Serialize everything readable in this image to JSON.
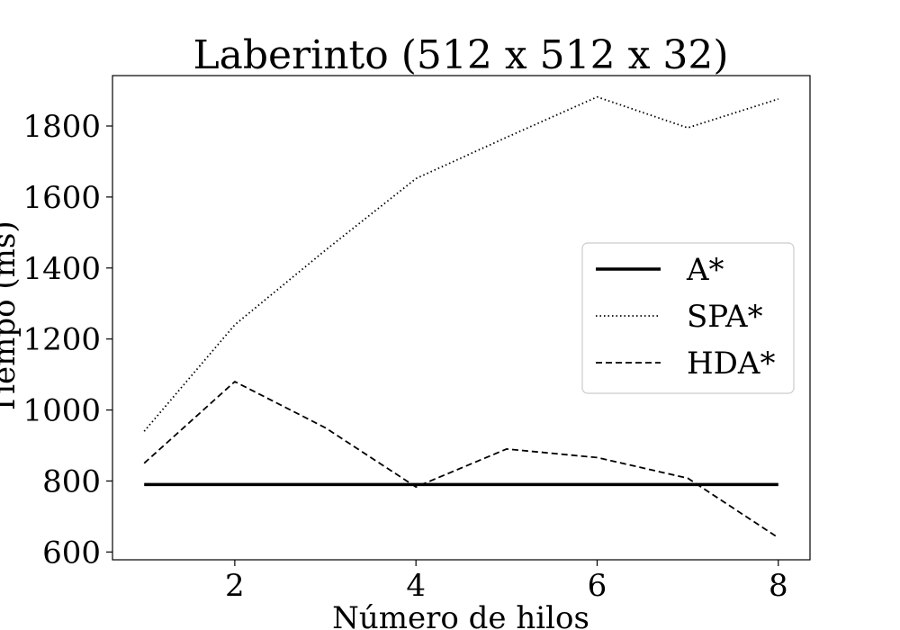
{
  "chart_data": {
    "type": "line",
    "title": "Laberinto (512 x 512 x 32)",
    "xlabel": "Número de hilos",
    "ylabel": "Tiempo (ms)",
    "xlim": [
      0.65,
      8.35
    ],
    "ylim": [
      578,
      1942
    ],
    "xticks": [
      2,
      4,
      6,
      8
    ],
    "yticks": [
      600,
      800,
      1000,
      1200,
      1400,
      1600,
      1800
    ],
    "grid": false,
    "legend_position": "center-right",
    "x": [
      1,
      2,
      3,
      4,
      5,
      6,
      7,
      8
    ],
    "series": [
      {
        "name": "A*",
        "style": "solid",
        "color": "#000000",
        "values": [
          790,
          790,
          790,
          790,
          790,
          790,
          790,
          790
        ]
      },
      {
        "name": "SPA*",
        "style": "dotted",
        "color": "#000000",
        "values": [
          940,
          1240,
          1450,
          1652,
          1768,
          1882,
          1795,
          1876
        ]
      },
      {
        "name": "HDA*",
        "style": "dashed",
        "color": "#000000",
        "values": [
          850,
          1080,
          950,
          783,
          890,
          866,
          808,
          640
        ]
      }
    ]
  }
}
